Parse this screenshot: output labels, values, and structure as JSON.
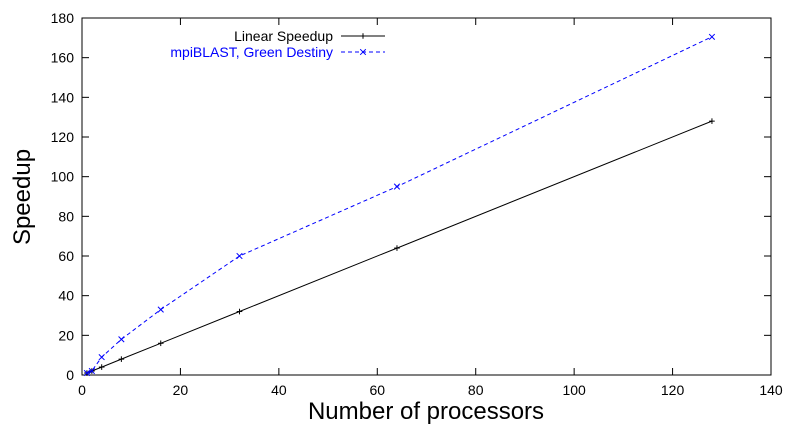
{
  "chart_data": {
    "type": "line",
    "title": "",
    "xlabel": "Number of processors",
    "ylabel": "Speedup",
    "xlim": [
      0,
      140
    ],
    "ylim": [
      0,
      180
    ],
    "xticks": [
      0,
      20,
      40,
      60,
      80,
      100,
      120,
      140
    ],
    "yticks": [
      0,
      20,
      40,
      60,
      80,
      100,
      120,
      140,
      160,
      180
    ],
    "grid": false,
    "legend_position": "top-left",
    "series": [
      {
        "name": "Linear Speedup",
        "color": "#000000",
        "marker": "plus",
        "line_style": "solid",
        "x": [
          1,
          2,
          4,
          8,
          16,
          32,
          64,
          128
        ],
        "y": [
          1,
          2,
          4,
          8,
          16,
          32,
          64,
          128
        ]
      },
      {
        "name": "mpiBLAST, Green Destiny",
        "color": "#0000ff",
        "marker": "x",
        "line_style": "dashed",
        "x": [
          1,
          2,
          4,
          8,
          16,
          32,
          64,
          128
        ],
        "y": [
          1,
          2,
          9,
          18,
          33,
          60,
          95,
          170.5
        ]
      }
    ]
  }
}
